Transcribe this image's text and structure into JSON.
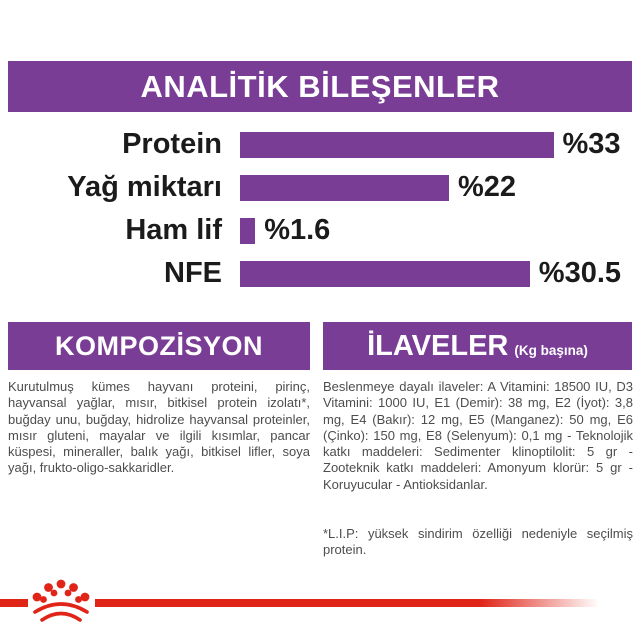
{
  "colors": {
    "purple": "#7A3D95",
    "red": "#E02418",
    "label_text": "#1b1b1b",
    "body_text": "#4d4d4f"
  },
  "analytical": {
    "title": "ANALİTİK BİLEŞENLER"
  },
  "chart_data": {
    "type": "bar",
    "orientation": "horizontal",
    "title": "ANALİTİK BİLEŞENLER",
    "categories": [
      "Protein",
      "Yağ miktarı",
      "Ham lif",
      "NFE"
    ],
    "values": [
      33,
      22,
      1.6,
      30.5
    ],
    "value_labels": [
      "%33",
      "%22",
      "%1.6",
      "%30.5"
    ],
    "unit": "%",
    "xlim": [
      0,
      35
    ],
    "bar_color": "#7A3D95",
    "grid": false,
    "legend": false
  },
  "composition": {
    "title": "KOMPOZİSYON",
    "body": "Kurutulmuş kümes hayvanı proteini, pirinç, hayvansal yağlar, mısır, bitkisel protein izolatı*, buğday unu, buğday, hidrolize hayvansal proteinler, mısır gluteni, mayalar ve ilgili kısımlar, pancar küspesi, mineraller, balık yağı, bitkisel lifler, soya yağı, frukto-oligo-sakkaridler."
  },
  "additives": {
    "title": "İLAVELER",
    "subtitle": "(Kg başına)",
    "body": "Beslenmeye dayalı ilaveler: A Vitamini: 18500 IU, D3 Vitamini: 1000 IU, E1 (Demir): 38 mg, E2 (İyot): 3,8 mg, E4 (Bakır): 12 mg, E5 (Manganez): 50 mg, E6 (Çinko): 150 mg, E8 (Selenyum): 0,1 mg - Teknolojik katkı maddeleri: Sedimenter klinoptilolit: 5 gr - Zooteknik katkı maddeleri: Amonyum klorür: 5 gr - Koruyucular - Antioksidanlar.",
    "footnote": "*L.I.P: yüksek sindirim özelliği nedeniyle seçilmiş protein."
  },
  "footer": {
    "brand_mark": "royal-canin-crown"
  }
}
